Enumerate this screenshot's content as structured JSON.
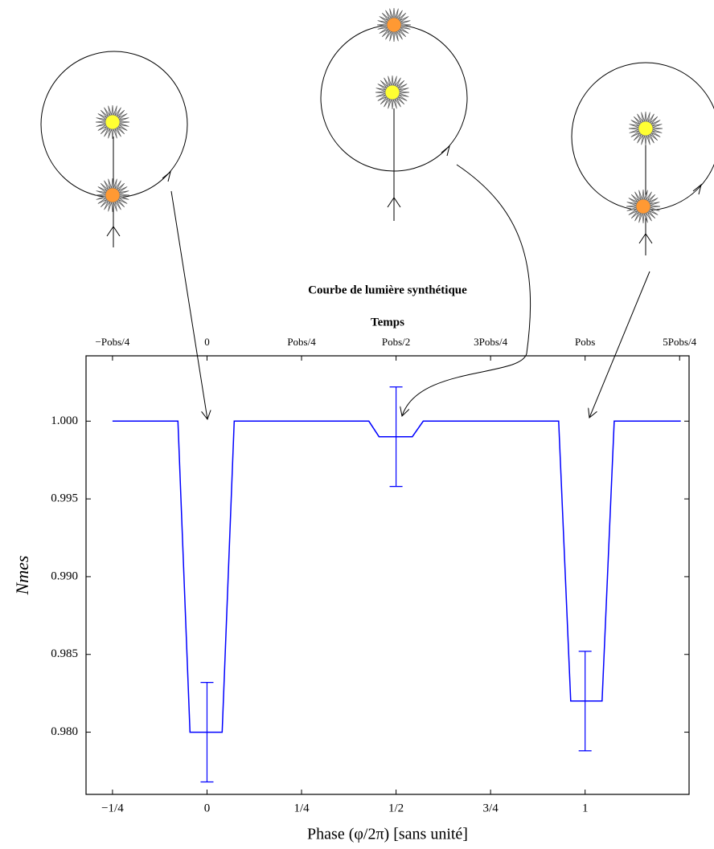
{
  "chart_data": {
    "type": "line",
    "title": "Courbe de lumière synthétique",
    "xlabel": "Phase (φ/2π) [sans unité]",
    "ylabel": "Nmes",
    "x2label": "Temps",
    "x": [
      -0.25,
      -0.077,
      -0.045,
      0.04,
      0.072,
      0.428,
      0.455,
      0.543,
      0.572,
      0.93,
      0.962,
      1.045,
      1.077,
      1.253
    ],
    "series": [
      {
        "color": "#0000ff",
        "values": [
          1.0,
          1.0,
          0.98,
          0.98,
          1.0,
          1.0,
          0.999,
          0.999,
          1.0,
          1.0,
          0.982,
          0.982,
          1.0,
          1.0
        ]
      }
    ],
    "errorbars": {
      "x": [
        0,
        0.5,
        1
      ],
      "values": [
        0.98,
        0.999,
        0.982
      ],
      "errors": [
        0.0032,
        0.0032,
        0.0032
      ]
    },
    "xlim": [
      -0.32,
      1.275
    ],
    "ylim": [
      0.976,
      1.0042
    ],
    "xticks": [
      {
        "value": -0.25,
        "label": "−1/4"
      },
      0,
      {
        "value": 0.25,
        "label": "1/4"
      },
      {
        "value": 0.5,
        "label": "1/2"
      },
      {
        "value": 0.75,
        "label": "3/4"
      },
      1
    ],
    "x2ticks": [
      {
        "value": -0.25,
        "label": "−Pobs/4"
      },
      {
        "value": 0,
        "label": "0"
      },
      {
        "value": 0.25,
        "label": "Pobs/4"
      },
      {
        "value": 0.5,
        "label": "Pobs/2"
      },
      {
        "value": 0.75,
        "label": "3Pobs/4"
      },
      {
        "value": 1,
        "label": "Pobs"
      },
      {
        "value": 1.25,
        "label": "5Pobs/4"
      }
    ],
    "yticks": [
      {
        "value": 0.98,
        "label": "0.980"
      },
      {
        "value": 0.985,
        "label": "0.985"
      },
      {
        "value": 0.99,
        "label": "0.990"
      },
      {
        "value": 0.995,
        "label": "0.995"
      },
      {
        "value": 1.0,
        "label": "1.000"
      }
    ]
  }
}
